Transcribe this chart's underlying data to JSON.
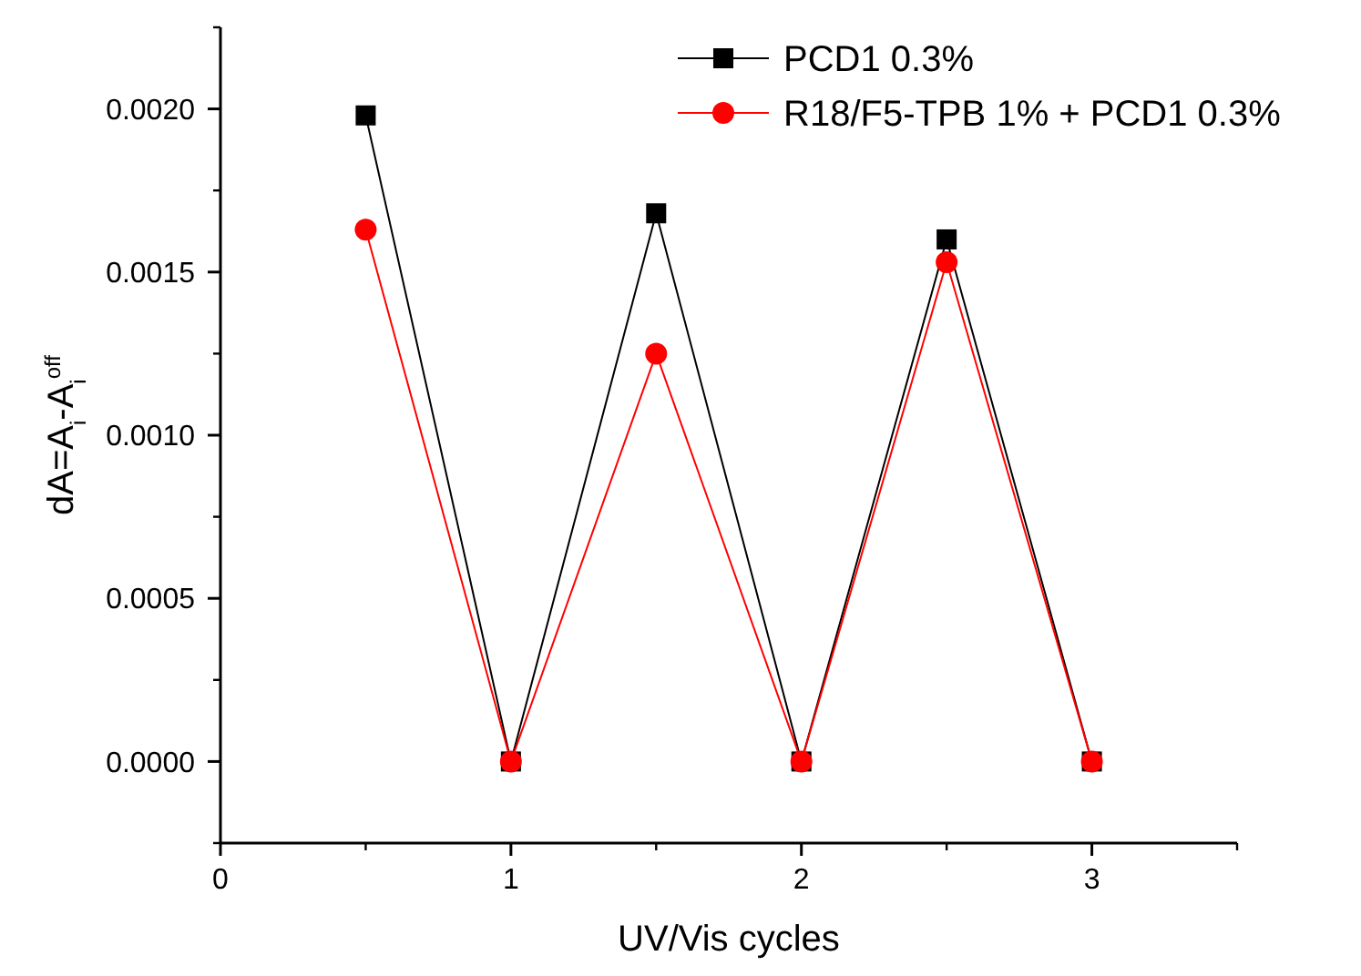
{
  "chart_data": {
    "type": "line",
    "xlabel": "UV/Vis cycles",
    "ylabel": "dA=A$_{i}$-A$_{i}$$^{off}$",
    "x": [
      0.5,
      1,
      1.5,
      2,
      2.5,
      3
    ],
    "series": [
      {
        "name": "PCD1 0.3%",
        "color": "#000000",
        "marker": "square",
        "values": [
          0.00198,
          0,
          0.00168,
          0,
          0.0016,
          0
        ]
      },
      {
        "name": "R18/F5-TPB 1% + PCD1 0.3%",
        "color": "#ff0000",
        "marker": "circle",
        "values": [
          0.00163,
          0,
          0.00125,
          0,
          0.00153,
          0
        ]
      }
    ],
    "xlim": [
      0,
      3.5
    ],
    "xticks": [
      0,
      1,
      2,
      3
    ],
    "ylim": [
      -0.00025,
      0.00225
    ],
    "yticks": [
      {
        "value": 0,
        "label": "0.0000"
      },
      {
        "value": 0.0005,
        "label": "0.0005"
      },
      {
        "value": 0.001,
        "label": "0.0010"
      },
      {
        "value": 0.0015,
        "label": "0.0015"
      },
      {
        "value": 0.002,
        "label": "0.0020"
      }
    ],
    "legend": "top right",
    "grid": false,
    "line_style": "solid"
  }
}
